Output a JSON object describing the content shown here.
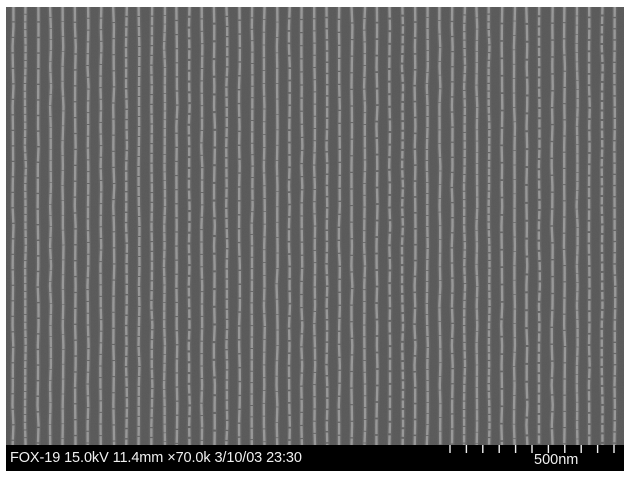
{
  "image": {
    "subject": "",
    "background_color": "#606060",
    "line_color": "#e8e8e8"
  },
  "info_bar": {
    "label": "FOX-19 15.0kV 11.4mm ×70.0k 3/10/03 23:30",
    "scale_label": "500nm",
    "tick_count": 11
  }
}
